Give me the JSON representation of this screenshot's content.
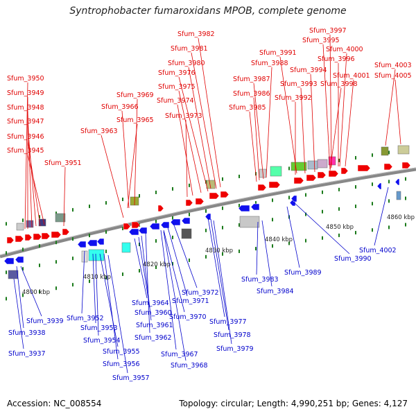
{
  "title": "Syntrophobacter fumaroxidans MPOB, complete genome",
  "footer": {
    "accession": "Accession: NC_008554",
    "summary": "Topology: circular; Length: 4,990,251 bp; Genes: 4,127"
  },
  "scale_labels": [
    "4800 kbp",
    "4810 kbp",
    "4820 kbp",
    "4830 kbp",
    "4840 kbp",
    "4850 kbp",
    "4860 kbp"
  ],
  "forward_labels": [
    "Sfum_3950",
    "Sfum_3949",
    "Sfum_3948",
    "Sfum_3947",
    "Sfum_3946",
    "Sfum_3945",
    "Sfum_3951",
    "Sfum_3969",
    "Sfum_3966",
    "Sfum_3965",
    "Sfum_3963",
    "Sfum_3982",
    "Sfum_3981",
    "Sfum_3980",
    "Sfum_3976",
    "Sfum_3975",
    "Sfum_3974",
    "Sfum_3973",
    "Sfum_3988",
    "Sfum_3987",
    "Sfum_3986",
    "Sfum_3985",
    "Sfum_3991",
    "Sfum_3997",
    "Sfum_3995",
    "Sfum_4000",
    "Sfum_3996",
    "Sfum_3994",
    "Sfum_4003",
    "Sfum_4001",
    "Sfum_4005",
    "Sfum_3993",
    "Sfum_3998",
    "Sfum_3992"
  ],
  "reverse_labels": [
    "Sfum_3939",
    "Sfum_3938",
    "Sfum_3937",
    "Sfum_3952",
    "Sfum_3953",
    "Sfum_3954",
    "Sfum_3955",
    "Sfum_3956",
    "Sfum_3957",
    "Sfum_3964",
    "Sfum_3960",
    "Sfum_3961",
    "Sfum_3962",
    "Sfum_3972",
    "Sfum_3971",
    "Sfum_3970",
    "Sfum_3967",
    "Sfum_3968",
    "Sfum_3977",
    "Sfum_3978",
    "Sfum_3979",
    "Sfum_3983",
    "Sfum_3984",
    "Sfum_3989",
    "Sfum_3990",
    "Sfum_4002"
  ],
  "colors": {
    "forward_gene": "#ee0000",
    "reverse_gene": "#1010ee",
    "backbone": "#888888",
    "tick": "#1a7a1a",
    "forward_label": "#e00000",
    "reverse_label": "#0000cc"
  }
}
